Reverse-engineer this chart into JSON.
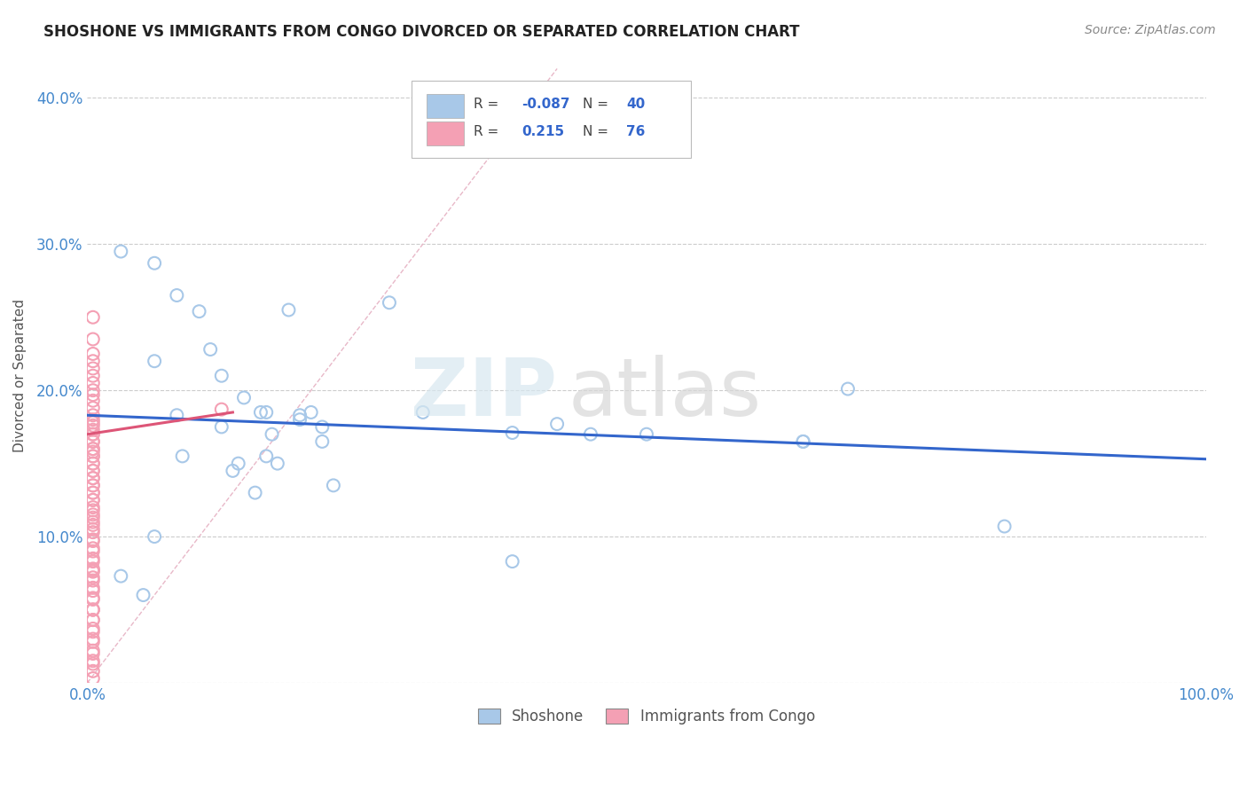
{
  "title": "SHOSHONE VS IMMIGRANTS FROM CONGO DIVORCED OR SEPARATED CORRELATION CHART",
  "source": "Source: ZipAtlas.com",
  "ylabel_label": "Divorced or Separated",
  "xlim": [
    0.0,
    1.0
  ],
  "ylim": [
    0.0,
    0.42
  ],
  "blue_R": -0.087,
  "blue_N": 40,
  "pink_R": 0.215,
  "pink_N": 76,
  "blue_marker_color": "#a8c8e8",
  "pink_marker_color": "#f4a0b4",
  "blue_line_color": "#3366cc",
  "pink_line_color": "#dd5577",
  "ref_line_color": "#e8b8c8",
  "watermark_zip": "ZIP",
  "watermark_atlas": "atlas",
  "legend_label_blue": "Shoshone",
  "legend_label_pink": "Immigrants from Congo",
  "blue_line_x0": 0.0,
  "blue_line_y0": 0.183,
  "blue_line_x1": 1.0,
  "blue_line_y1": 0.153,
  "pink_line_x0": 0.0,
  "pink_line_y0": 0.17,
  "pink_line_x1": 0.13,
  "pink_line_y1": 0.185,
  "blue_scatter_x": [
    0.03,
    0.06,
    0.08,
    0.1,
    0.06,
    0.11,
    0.18,
    0.14,
    0.2,
    0.12,
    0.27,
    0.155,
    0.3,
    0.19,
    0.08,
    0.16,
    0.12,
    0.21,
    0.19,
    0.165,
    0.21,
    0.38,
    0.42,
    0.5,
    0.64,
    0.68,
    0.64,
    0.82,
    0.085,
    0.16,
    0.13,
    0.135,
    0.17,
    0.22,
    0.15,
    0.45,
    0.38,
    0.06,
    0.03,
    0.05
  ],
  "blue_scatter_y": [
    0.295,
    0.287,
    0.265,
    0.254,
    0.22,
    0.228,
    0.255,
    0.195,
    0.185,
    0.21,
    0.26,
    0.185,
    0.185,
    0.18,
    0.183,
    0.185,
    0.175,
    0.175,
    0.183,
    0.17,
    0.165,
    0.171,
    0.177,
    0.17,
    0.165,
    0.201,
    0.165,
    0.107,
    0.155,
    0.155,
    0.145,
    0.15,
    0.15,
    0.135,
    0.13,
    0.17,
    0.083,
    0.1,
    0.073,
    0.06
  ],
  "pink_scatter_x": [
    0.005,
    0.005,
    0.005,
    0.005,
    0.005,
    0.005,
    0.005,
    0.005,
    0.005,
    0.005,
    0.005,
    0.005,
    0.005,
    0.005,
    0.005,
    0.005,
    0.005,
    0.005,
    0.005,
    0.005,
    0.005,
    0.005,
    0.005,
    0.005,
    0.005,
    0.005,
    0.005,
    0.005,
    0.005,
    0.005,
    0.005,
    0.005,
    0.005,
    0.005,
    0.005,
    0.005,
    0.005,
    0.005,
    0.005,
    0.005,
    0.005,
    0.005,
    0.005,
    0.005,
    0.005,
    0.005,
    0.005,
    0.005,
    0.005,
    0.005,
    0.005,
    0.005,
    0.005,
    0.005,
    0.005,
    0.005,
    0.005,
    0.005,
    0.005,
    0.005,
    0.005,
    0.005,
    0.005,
    0.005,
    0.005,
    0.005,
    0.005,
    0.005,
    0.005,
    0.005,
    0.005,
    0.005,
    0.005,
    0.005,
    0.005,
    0.12
  ],
  "pink_scatter_y": [
    0.25,
    0.235,
    0.225,
    0.22,
    0.215,
    0.21,
    0.205,
    0.2,
    0.197,
    0.193,
    0.188,
    0.183,
    0.178,
    0.173,
    0.17,
    0.165,
    0.16,
    0.155,
    0.15,
    0.145,
    0.14,
    0.135,
    0.13,
    0.125,
    0.12,
    0.115,
    0.11,
    0.105,
    0.098,
    0.092,
    0.085,
    0.078,
    0.072,
    0.065,
    0.058,
    0.05,
    0.043,
    0.037,
    0.03,
    0.022,
    0.015,
    0.008,
    0.003,
    0.176,
    0.17,
    0.165,
    0.16,
    0.155,
    0.15,
    0.145,
    0.14,
    0.135,
    0.13,
    0.125,
    0.118,
    0.113,
    0.108,
    0.103,
    0.097,
    0.09,
    0.083,
    0.077,
    0.07,
    0.063,
    0.057,
    0.05,
    0.043,
    0.035,
    0.028,
    0.02,
    0.013,
    0.18,
    0.158,
    0.076,
    0.05,
    0.187
  ]
}
